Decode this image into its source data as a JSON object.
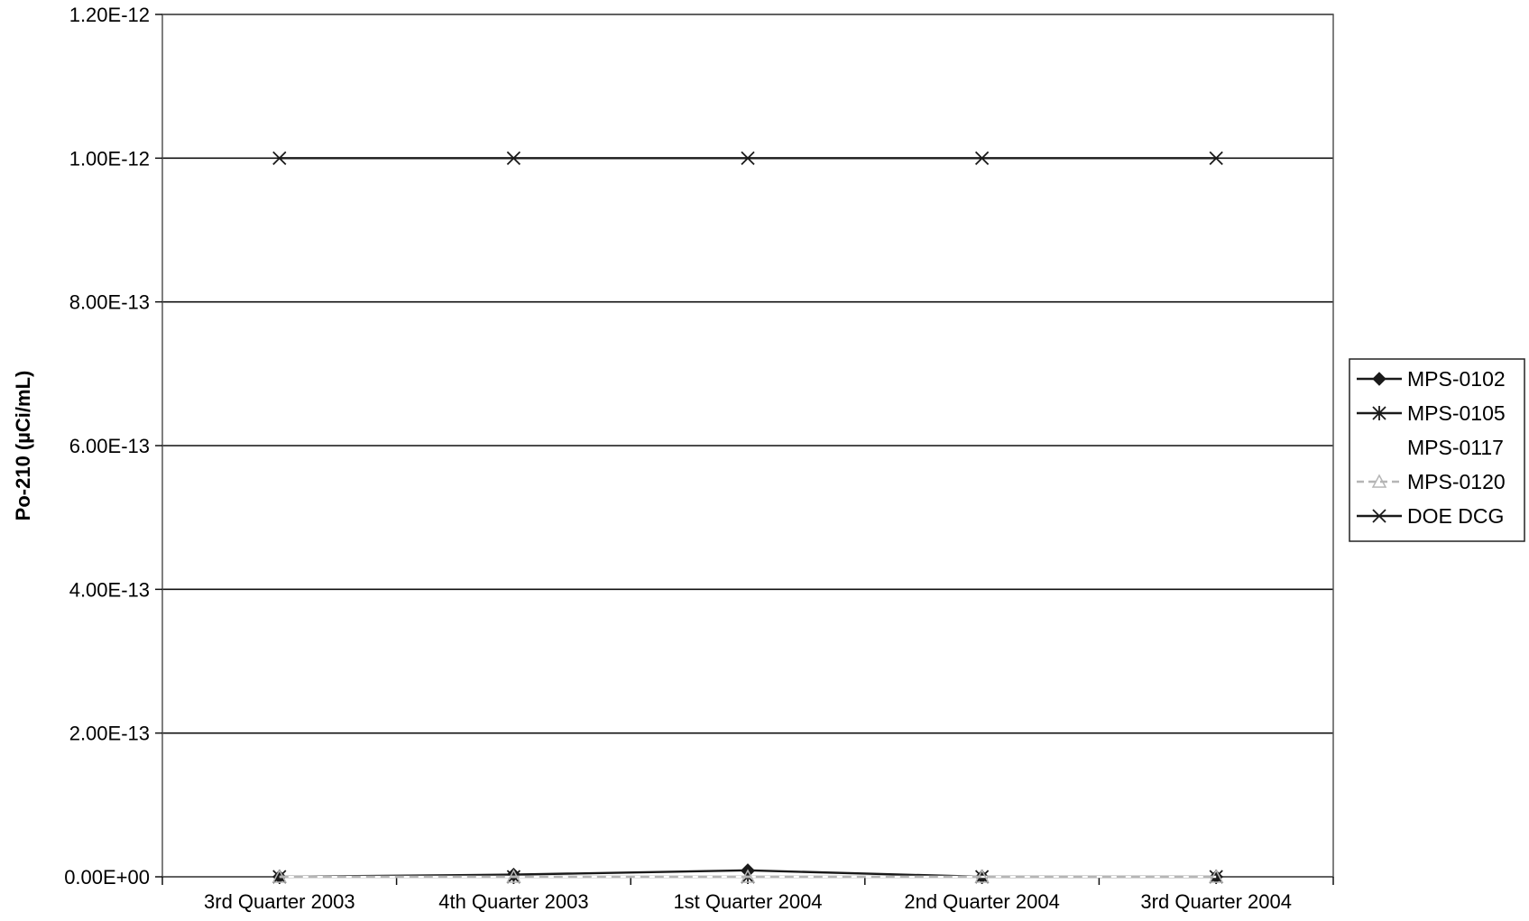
{
  "chart_data": {
    "type": "line",
    "title": "",
    "xlabel": "",
    "ylabel": "Po-210 (µCi/mL)",
    "categories": [
      "3rd Quarter 2003",
      "4th Quarter 2003",
      "1st Quarter 2004",
      "2nd Quarter 2004",
      "3rd Quarter 2004"
    ],
    "ylim": [
      0,
      1.2e-12
    ],
    "yticks": [
      0,
      2e-13,
      4e-13,
      6e-13,
      8e-13,
      1e-12,
      1.2e-12
    ],
    "ytick_labels": [
      "0.00E+00",
      "2.00E-13",
      "4.00E-13",
      "6.00E-13",
      "8.00E-13",
      "1.00E-12",
      "1.20E-12"
    ],
    "grid": true,
    "legend_position": "right",
    "series": [
      {
        "name": "MPS-0102",
        "values": [
          0,
          3e-15,
          9e-15,
          0,
          0
        ],
        "color": "#1a1a1a",
        "marker": "diamond",
        "dash": "solid"
      },
      {
        "name": "MPS-0105",
        "values": [
          0,
          0,
          0,
          0,
          0
        ],
        "color": "#1a1a1a",
        "marker": "asterisk",
        "dash": "solid"
      },
      {
        "name": "MPS-0117",
        "values": [
          0,
          0,
          0,
          0,
          0
        ],
        "color": "#ffffff",
        "marker": "none",
        "dash": "solid"
      },
      {
        "name": "MPS-0120",
        "values": [
          0,
          0,
          0,
          0,
          0
        ],
        "color": "#b5b5b5",
        "marker": "triangle",
        "dash": "dashed"
      },
      {
        "name": "DOE DCG",
        "values": [
          1e-12,
          1e-12,
          1e-12,
          1e-12,
          1e-12
        ],
        "color": "#1a1a1a",
        "marker": "x",
        "dash": "solid"
      }
    ]
  }
}
